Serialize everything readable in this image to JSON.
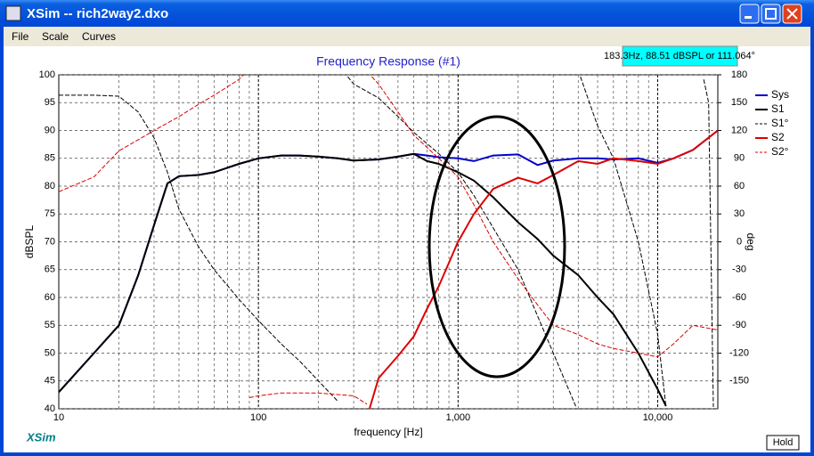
{
  "window": {
    "title": "XSim -- rich2way2.dxo"
  },
  "menu": [
    "File",
    "Scale",
    "Curves"
  ],
  "readout": "183.3Hz, 88.51 dBSPL or 111.064°",
  "logo": "XSim",
  "hold_button": "Hold",
  "chart_data": {
    "type": "line",
    "title": "Frequency Response (#1)",
    "x_label": "frequency [Hz]",
    "y_label": "dBSPL",
    "y2_label": "deg",
    "log_x": true,
    "grid": true,
    "xlim": [
      10,
      20000
    ],
    "xticks": [
      10,
      100,
      {
        "value": 1000,
        "label": "1,000"
      },
      {
        "value": 10000,
        "label": "10,000"
      }
    ],
    "ylim": [
      40,
      100
    ],
    "yticks": [
      40,
      45,
      50,
      55,
      60,
      65,
      70,
      75,
      80,
      85,
      90,
      95,
      100
    ],
    "y2lim": [
      -180,
      180
    ],
    "y2ticks": [
      -150,
      -120,
      -90,
      -60,
      -30,
      0,
      30,
      60,
      90,
      120,
      150,
      180
    ],
    "legend": "right",
    "series": [
      {
        "name": "Sys",
        "color": "#0000cc",
        "width": 2,
        "x": [
          10,
          15,
          20,
          25,
          30,
          35,
          40,
          50,
          60,
          80,
          100,
          130,
          160,
          200,
          250,
          300,
          400,
          500,
          600,
          700,
          800,
          1000,
          1200,
          1500,
          2000,
          2500,
          3000,
          4000,
          5000,
          6000,
          8000,
          10000,
          12000,
          15000,
          20000
        ],
        "values": [
          43,
          50,
          55,
          64,
          73,
          80.5,
          81.8,
          82,
          82.5,
          84,
          85,
          85.5,
          85.5,
          85.3,
          85,
          84.6,
          84.8,
          85.3,
          85.8,
          85.5,
          85.2,
          85,
          84.5,
          85.5,
          85.7,
          83.8,
          84.6,
          85,
          85,
          84.8,
          85,
          84.2,
          85,
          86.5,
          90
        ]
      },
      {
        "name": "S1",
        "color": "#000000",
        "width": 2,
        "x": [
          10,
          15,
          20,
          25,
          30,
          35,
          40,
          50,
          60,
          80,
          100,
          130,
          160,
          200,
          250,
          300,
          400,
          500,
          600,
          700,
          800,
          1000,
          1200,
          1500,
          2000,
          2500,
          3000,
          4000,
          5000,
          6000,
          8000,
          10000,
          11000
        ],
        "values": [
          43,
          50,
          55,
          64,
          73,
          80.5,
          81.8,
          82,
          82.5,
          84,
          85,
          85.5,
          85.5,
          85.3,
          85,
          84.6,
          84.8,
          85.3,
          85.8,
          84.5,
          84,
          82.5,
          81,
          78,
          73.5,
          70.5,
          67.5,
          64,
          60,
          57,
          50,
          43.5,
          40.5
        ]
      },
      {
        "name": "S1°",
        "color": "#000000",
        "width": 1,
        "dashed": true,
        "axis": "y2",
        "x": [
          10,
          15,
          20,
          25,
          30,
          35,
          40,
          50,
          60,
          80,
          100,
          130,
          160,
          200,
          250,
          265,
          280,
          300,
          400,
          500,
          600,
          800,
          1000,
          1200,
          1500,
          2000,
          2500,
          3000,
          3900,
          4000,
          4100,
          5000,
          6000,
          8000,
          10000,
          11000,
          12000,
          17000,
          18000,
          19000
        ],
        "values": [
          158,
          158,
          157,
          140,
          112,
          75,
          35,
          -5,
          -30,
          -62,
          -85,
          -110,
          -128,
          -150,
          -172,
          null,
          178,
          170,
          155,
          135,
          118,
          95,
          75,
          50,
          15,
          -30,
          -80,
          -120,
          -178,
          null,
          178,
          125,
          90,
          0,
          -100,
          -178,
          null,
          175,
          150,
          -178
        ]
      },
      {
        "name": "S2",
        "color": "#dd0000",
        "width": 2,
        "x": [
          360,
          400,
          500,
          600,
          700,
          800,
          1000,
          1200,
          1500,
          2000,
          2500,
          3000,
          4000,
          5000,
          6000,
          8000,
          10000,
          12000,
          15000,
          20000
        ],
        "values": [
          40,
          45.5,
          49.5,
          53,
          58,
          62,
          70,
          75,
          79.5,
          81.5,
          80.5,
          82,
          84.5,
          84,
          85,
          84.5,
          84,
          85,
          86.5,
          90
        ]
      },
      {
        "name": "S2°",
        "color": "#dd0000",
        "width": 1,
        "dashed": true,
        "axis": "y2",
        "x": [
          10,
          15,
          20,
          25,
          30,
          40,
          50,
          60,
          80,
          84,
          85,
          90,
          100,
          130,
          200,
          300,
          350,
          360,
          370,
          400,
          500,
          600,
          800,
          1000,
          1200,
          1500,
          2000,
          2500,
          3000,
          4000,
          5000,
          6000,
          8000,
          10000,
          12000,
          15000,
          20000
        ],
        "values": [
          54,
          70,
          98,
          110,
          120,
          135,
          148,
          158,
          175,
          180,
          null,
          -168,
          -166,
          -163,
          -163,
          -166,
          -175,
          null,
          178,
          170,
          140,
          115,
          90,
          70,
          40,
          0,
          -40,
          -68,
          -90,
          -100,
          -110,
          -115,
          -120,
          -124,
          -110,
          -90,
          -95
        ]
      }
    ]
  }
}
